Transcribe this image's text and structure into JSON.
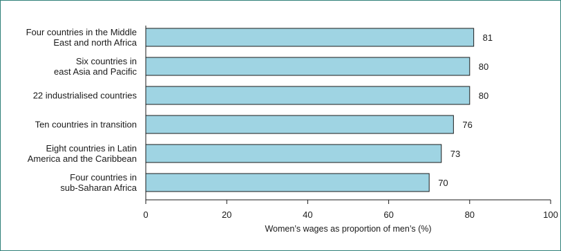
{
  "chart_data": {
    "type": "bar",
    "orientation": "horizontal",
    "categories": [
      [
        "Four countries in the Middle",
        "East and north Africa"
      ],
      [
        "Six countries in",
        "east Asia and Pacific"
      ],
      [
        "22 industrialised countries"
      ],
      [
        "Ten countries in transition"
      ],
      [
        "Eight countries in Latin",
        "America and the Caribbean"
      ],
      [
        "Four countries in",
        "sub-Saharan Africa"
      ]
    ],
    "values": [
      81,
      80,
      80,
      76,
      73,
      70
    ],
    "value_labels": [
      "81",
      "80",
      "80",
      "76",
      "73",
      "70"
    ],
    "title": "",
    "xlabel": "Women’s wages as proportion of men’s (%)",
    "ylabel": "",
    "xlim": [
      0,
      100
    ],
    "xticks": [
      0,
      20,
      40,
      60,
      80,
      100
    ],
    "xtick_labels": [
      "0",
      "20",
      "40",
      "60",
      "80",
      "100"
    ],
    "grid": false,
    "legend": "none",
    "colors": {
      "bar_fill": "#9fd4e3",
      "bar_stroke": "#1a1a1a",
      "axis": "#1a1a1a",
      "frame": "#2f7f78",
      "text": "#1a1a1a"
    }
  }
}
